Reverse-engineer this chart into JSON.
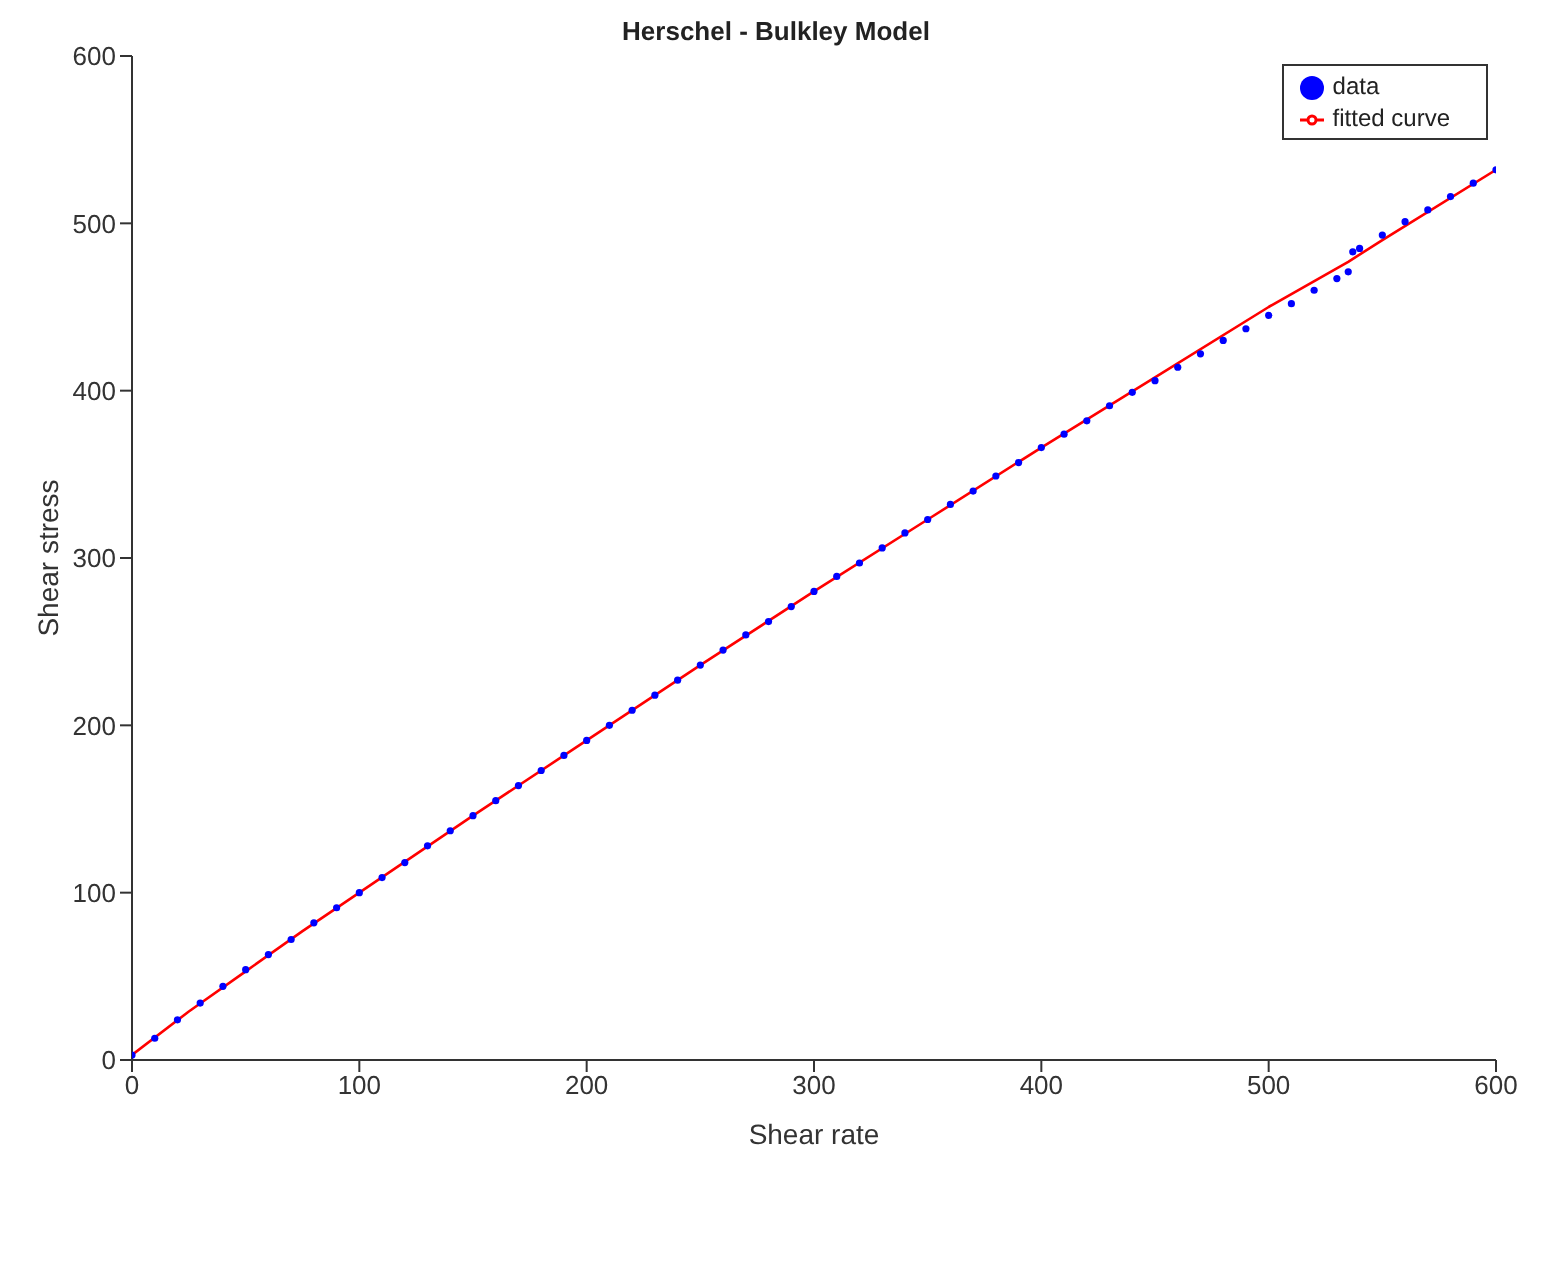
{
  "chart_data": {
    "type": "line",
    "title": "Herschel - Bulkley Model",
    "xlabel": "Shear rate",
    "ylabel": "Shear stress",
    "xlim": [
      0,
      600
    ],
    "xticks": [
      0,
      100,
      200,
      300,
      400,
      500,
      600
    ],
    "ylim": [
      0,
      600
    ],
    "yticks": [
      0,
      100,
      200,
      300,
      400,
      500,
      600
    ],
    "legend": "top right",
    "grid": false,
    "series": [
      {
        "name": "data",
        "type": "scatter",
        "marker": "circle",
        "color": "#0000ff",
        "x": [
          0,
          10,
          20,
          30,
          40,
          50,
          60,
          70,
          80,
          90,
          100,
          110,
          120,
          130,
          140,
          150,
          160,
          170,
          180,
          190,
          200,
          210,
          220,
          230,
          240,
          250,
          260,
          270,
          280,
          290,
          300,
          310,
          320,
          330,
          340,
          350,
          360,
          370,
          380,
          390,
          400,
          410,
          420,
          430,
          440,
          450,
          460,
          470,
          480,
          490,
          500,
          510,
          520,
          530,
          535,
          537,
          540,
          550,
          560,
          570,
          580,
          590,
          600
        ],
        "values": [
          3,
          13,
          24,
          34,
          44,
          54,
          63,
          72,
          82,
          91,
          100,
          109,
          118,
          128,
          137,
          146,
          155,
          164,
          173,
          182,
          191,
          200,
          209,
          218,
          227,
          236,
          245,
          254,
          262,
          271,
          280,
          289,
          297,
          306,
          315,
          323,
          332,
          340,
          349,
          357,
          366,
          374,
          382,
          391,
          399,
          406,
          414,
          422,
          430,
          437,
          445,
          452,
          460,
          467,
          471,
          483,
          485,
          493,
          501,
          508,
          516,
          524,
          532
        ]
      },
      {
        "name": "fitted curve",
        "type": "line",
        "marker": "none",
        "line_style": "solid",
        "color": "#ff0000",
        "x": [
          0,
          25,
          50,
          75,
          100,
          150,
          200,
          250,
          300,
          350,
          400,
          450,
          500,
          535,
          550,
          600
        ],
        "values": [
          3,
          29,
          53,
          77,
          100,
          146,
          191,
          236,
          280,
          323,
          366,
          408,
          450,
          477,
          490,
          532
        ]
      }
    ]
  }
}
